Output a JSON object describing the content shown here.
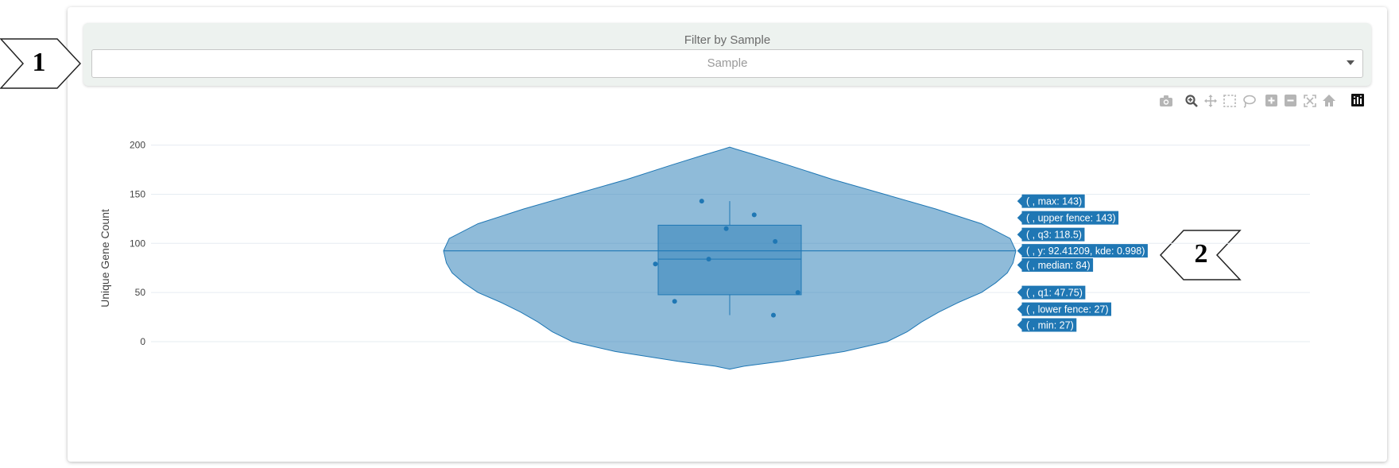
{
  "filter": {
    "title": "Filter by Sample",
    "placeholder": "Sample"
  },
  "modebar": {
    "icons": [
      "camera-icon",
      "zoom-icon",
      "pan-icon",
      "box-select-icon",
      "lasso-icon",
      "zoom-in-icon",
      "zoom-out-icon",
      "autoscale-icon",
      "reset-axes-icon",
      "plotly-logo-icon"
    ]
  },
  "callouts": [
    "1",
    "2"
  ],
  "chart_data": {
    "type": "violin",
    "ylabel": "Unique Gene Count",
    "yticks": [
      0,
      50,
      100,
      150,
      200
    ],
    "ylim": [
      -28,
      200
    ],
    "grid": true,
    "violin": {
      "kde_max_y": 92.41209,
      "profile": [
        [
          -28,
          0.0
        ],
        [
          -25,
          0.05
        ],
        [
          -20,
          0.18
        ],
        [
          -10,
          0.4
        ],
        [
          0,
          0.55
        ],
        [
          10,
          0.62
        ],
        [
          20,
          0.67
        ],
        [
          30,
          0.73
        ],
        [
          40,
          0.8
        ],
        [
          50,
          0.88
        ],
        [
          60,
          0.93
        ],
        [
          70,
          0.97
        ],
        [
          80,
          0.99
        ],
        [
          92.41,
          1.0
        ],
        [
          105,
          0.98
        ],
        [
          120,
          0.88
        ],
        [
          135,
          0.72
        ],
        [
          150,
          0.54
        ],
        [
          165,
          0.36
        ],
        [
          180,
          0.2
        ],
        [
          190,
          0.09
        ],
        [
          196,
          0.02
        ],
        [
          198,
          0.0
        ]
      ]
    },
    "box": {
      "min": 27,
      "lower_fence": 27,
      "q1": 47.75,
      "median": 84,
      "q3": 118.5,
      "upper_fence": 143,
      "max": 143
    },
    "points": [
      {
        "y": 143,
        "jitter": -0.32
      },
      {
        "y": 129,
        "jitter": 0.28
      },
      {
        "y": 115,
        "jitter": -0.04
      },
      {
        "y": 102,
        "jitter": 0.52
      },
      {
        "y": 84,
        "jitter": -0.24
      },
      {
        "y": 79,
        "jitter": -0.85
      },
      {
        "y": 50,
        "jitter": 0.78
      },
      {
        "y": 41,
        "jitter": -0.63
      },
      {
        "y": 27,
        "jitter": 0.5
      }
    ],
    "hover_labels": [
      {
        "text": "( , max: 143)",
        "y": 143
      },
      {
        "text": "( , upper fence: 143)",
        "y": 126
      },
      {
        "text": "( , q3: 118.5)",
        "y": 109
      },
      {
        "text": "( , y: 92.41209, kde: 0.998)",
        "y": 92.41209
      },
      {
        "text": "( , median: 84)",
        "y": 78
      },
      {
        "text": "( , q1: 47.75)",
        "y": 50
      },
      {
        "text": "( , lower fence: 27)",
        "y": 33
      },
      {
        "text": "( , min: 27)",
        "y": 17
      }
    ],
    "colors": {
      "fill": "#1f77b4",
      "line": "#1f77b4",
      "label_bg": "#1f77b4"
    }
  }
}
